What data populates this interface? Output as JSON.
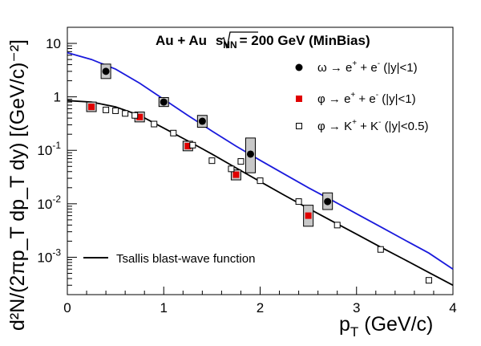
{
  "chart_data": {
    "type": "scatter",
    "header": {
      "system": "Au + Au",
      "sqrt": "s",
      "sub": "NN",
      "energy": "= 200 GeV (MinBias)"
    },
    "xlabel": {
      "main": "p",
      "sub": "T",
      "rest": " (GeV/c)"
    },
    "ylabel": "d²N/(2πp_T dp_T dy) [(GeV/c)⁻²]",
    "xlim": [
      0,
      4
    ],
    "ylim": [
      0.0002,
      20
    ],
    "log_y": true,
    "x_ticks": [
      {
        "value": 0,
        "label": "0"
      },
      {
        "value": 1,
        "label": "1"
      },
      {
        "value": 2,
        "label": "2"
      },
      {
        "value": 3,
        "label": "3"
      },
      {
        "value": 4,
        "label": "4"
      }
    ],
    "y_ticks": [
      {
        "value": 10,
        "base": "10",
        "exp": ""
      },
      {
        "value": 1,
        "base": "1",
        "exp": ""
      },
      {
        "value": 0.1,
        "base": "10",
        "exp": "-1"
      },
      {
        "value": 0.01,
        "base": "10",
        "exp": "-2"
      },
      {
        "value": 0.001,
        "base": "10",
        "exp": "-3"
      }
    ],
    "legend_position": "top-right",
    "series": [
      {
        "name": "ω → e⁺ + e⁻  (|y|<1)",
        "legend": {
          "particle": "ω",
          "arrow": "→",
          "products": [
            [
              "e",
              "+"
            ],
            [
              "e",
              "-"
            ]
          ],
          "range": "(|y|<1)"
        },
        "marker": "circle",
        "color": "#000000",
        "points": [
          {
            "x": 0.4,
            "y": 3.0,
            "sys_lo": 2.2,
            "sys_hi": 4.1
          },
          {
            "x": 1.0,
            "y": 0.8,
            "sys_lo": 0.66,
            "sys_hi": 0.97
          },
          {
            "x": 1.4,
            "y": 0.35,
            "sys_lo": 0.27,
            "sys_hi": 0.45
          },
          {
            "x": 1.9,
            "y": 0.085,
            "sys_lo": 0.038,
            "sys_hi": 0.17
          },
          {
            "x": 2.7,
            "y": 0.011,
            "sys_lo": 0.0078,
            "sys_hi": 0.016
          }
        ]
      },
      {
        "name": "φ → e⁺ + e⁻  (|y|<1)",
        "legend": {
          "particle": "φ",
          "arrow": "→",
          "products": [
            [
              "e",
              "+"
            ],
            [
              "e",
              "-"
            ]
          ],
          "range": "(|y|<1)"
        },
        "marker": "square-filled",
        "color": "#e00000",
        "points": [
          {
            "x": 0.25,
            "y": 0.65,
            "sys_lo": 0.53,
            "sys_hi": 0.8
          },
          {
            "x": 0.75,
            "y": 0.42,
            "sys_lo": 0.34,
            "sys_hi": 0.52
          },
          {
            "x": 1.25,
            "y": 0.12,
            "sys_lo": 0.098,
            "sys_hi": 0.148
          },
          {
            "x": 1.75,
            "y": 0.035,
            "sys_lo": 0.028,
            "sys_hi": 0.043
          },
          {
            "x": 2.5,
            "y": 0.006,
            "sys_lo": 0.0038,
            "sys_hi": 0.0094
          }
        ]
      },
      {
        "name": "φ → K⁺ + K⁻  (|y|<0.5)",
        "legend": {
          "particle": "φ",
          "arrow": "→",
          "products": [
            [
              "K",
              "+"
            ],
            [
              "K",
              "-"
            ]
          ],
          "range": "(|y|<0.5)"
        },
        "marker": "square-open",
        "color": "#000000",
        "points": [
          {
            "x": 0.4,
            "y": 0.57
          },
          {
            "x": 0.5,
            "y": 0.55
          },
          {
            "x": 0.6,
            "y": 0.49
          },
          {
            "x": 0.7,
            "y": 0.45
          },
          {
            "x": 0.9,
            "y": 0.31
          },
          {
            "x": 1.1,
            "y": 0.21
          },
          {
            "x": 1.3,
            "y": 0.125
          },
          {
            "x": 1.5,
            "y": 0.064
          },
          {
            "x": 1.7,
            "y": 0.045
          },
          {
            "x": 1.8,
            "y": 0.062
          },
          {
            "x": 2.0,
            "y": 0.027
          },
          {
            "x": 2.4,
            "y": 0.011
          },
          {
            "x": 2.8,
            "y": 0.004
          },
          {
            "x": 3.25,
            "y": 0.0014
          },
          {
            "x": 3.75,
            "y": 0.00037
          }
        ]
      }
    ],
    "curves": [
      {
        "name": "Tsallis blast-wave function",
        "color": "#000000",
        "points": [
          [
            0,
            0.85
          ],
          [
            0.25,
            0.8
          ],
          [
            0.5,
            0.65
          ],
          [
            0.75,
            0.45
          ],
          [
            1.0,
            0.26
          ],
          [
            1.25,
            0.15
          ],
          [
            1.5,
            0.085
          ],
          [
            1.75,
            0.047
          ],
          [
            2.0,
            0.026
          ],
          [
            2.25,
            0.0145
          ],
          [
            2.5,
            0.0082
          ],
          [
            2.75,
            0.0047
          ],
          [
            3.0,
            0.0027
          ],
          [
            3.25,
            0.00155
          ],
          [
            3.5,
            0.0009
          ],
          [
            3.75,
            0.00052
          ],
          [
            4.0,
            0.0003
          ]
        ]
      },
      {
        "name": "",
        "color": "#1a1adc",
        "points": [
          [
            0,
            6.7
          ],
          [
            0.25,
            5.0
          ],
          [
            0.5,
            3.3
          ],
          [
            0.75,
            1.8
          ],
          [
            1.0,
            0.9
          ],
          [
            1.25,
            0.45
          ],
          [
            1.5,
            0.23
          ],
          [
            1.75,
            0.12
          ],
          [
            2.0,
            0.065
          ],
          [
            2.25,
            0.036
          ],
          [
            2.5,
            0.02
          ],
          [
            2.75,
            0.0115
          ],
          [
            3.0,
            0.0065
          ],
          [
            3.25,
            0.0037
          ],
          [
            3.5,
            0.0021
          ],
          [
            3.75,
            0.0012
          ],
          [
            4.0,
            0.0006
          ]
        ]
      }
    ],
    "line_legend": "Tsallis blast-wave function"
  }
}
